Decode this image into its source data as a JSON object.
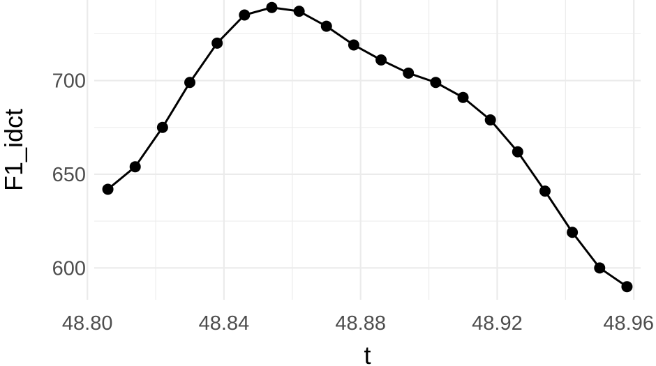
{
  "chart_data": {
    "type": "line",
    "title": "",
    "xlabel": "t",
    "ylabel": "F1_idct",
    "xlim": [
      48.802,
      48.962
    ],
    "ylim": [
      583,
      743
    ],
    "x_ticks": [
      48.8,
      48.84,
      48.88,
      48.92,
      48.96
    ],
    "x_tick_labels": [
      "48.80",
      "48.84",
      "48.88",
      "48.92",
      "48.96"
    ],
    "x_minor_ticks": [
      48.82,
      48.86,
      48.9,
      48.94
    ],
    "y_ticks": [
      600,
      650,
      700
    ],
    "y_tick_labels": [
      "600",
      "650",
      "700"
    ],
    "y_minor_ticks": [
      625,
      675,
      725
    ],
    "grid": true,
    "markers": true,
    "series": [
      {
        "x": [
          48.806,
          48.814,
          48.822,
          48.83,
          48.838,
          48.846,
          48.854,
          48.862,
          48.87,
          48.878,
          48.886,
          48.894,
          48.902,
          48.91,
          48.918,
          48.926,
          48.934,
          48.942,
          48.95,
          48.958
        ],
        "y": [
          642,
          654,
          675,
          699,
          720,
          735,
          739,
          737,
          729,
          719,
          711,
          704,
          699,
          691,
          679,
          662,
          641,
          619,
          600,
          590
        ]
      }
    ],
    "colors": {
      "line": "#000000",
      "points": "#000000",
      "grid": "#ebebeb",
      "tick_text": "#4d4d4d",
      "axis_title": "#000000"
    }
  }
}
